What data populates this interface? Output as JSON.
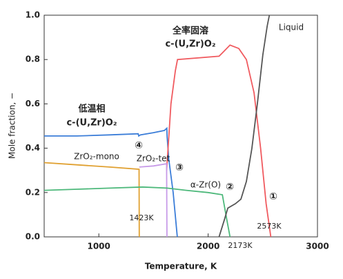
{
  "chart_data": {
    "type": "line",
    "xlabel": "Temperature, K",
    "ylabel": "Mole fraction, −",
    "xlim": [
      500,
      3000
    ],
    "xticks": [
      1000,
      2000,
      3000
    ],
    "ylim": [
      0,
      1
    ],
    "yticks": [
      {
        "value": 0,
        "label": "0.0"
      },
      0.2,
      0.4,
      0.6,
      0.8,
      {
        "value": 1,
        "label": "1.0"
      }
    ],
    "series": [
      {
        "color": "#3b7dd8",
        "x": [
          500,
          800,
          1100,
          1360,
          1365,
          1380,
          1500,
          1600,
          1622,
          1625,
          1640,
          1680,
          1718
        ],
        "values": [
          0.455,
          0.455,
          0.46,
          0.465,
          0.455,
          0.46,
          0.47,
          0.48,
          0.49,
          0.45,
          0.35,
          0.2,
          0
        ]
      },
      {
        "color": "#f05a5f",
        "x": [
          1620,
          1640,
          1660,
          1700,
          1720,
          2100,
          2130,
          2200,
          2280,
          2350,
          2420,
          2480,
          2530,
          2573
        ],
        "values": [
          0.3,
          0.45,
          0.6,
          0.75,
          0.8,
          0.815,
          0.83,
          0.865,
          0.85,
          0.8,
          0.65,
          0.4,
          0.15,
          0
        ]
      },
      {
        "color": "#e0a030",
        "x": [
          500,
          800,
          1100,
          1368,
          1370
        ],
        "values": [
          0.335,
          0.325,
          0.315,
          0.305,
          0
        ]
      },
      {
        "color": "#c79ae8",
        "x": [
          1370,
          1500,
          1620,
          1623
        ],
        "values": [
          0.315,
          0.32,
          0.33,
          0
        ]
      },
      {
        "color": "#4cb87a",
        "x": [
          500,
          800,
          1100,
          1400,
          1625,
          1800,
          2000,
          2130,
          2170,
          2200
        ],
        "values": [
          0.21,
          0.215,
          0.22,
          0.225,
          0.22,
          0.21,
          0.2,
          0.19,
          0.08,
          0
        ]
      },
      {
        "color": "#555555",
        "x": [
          2100,
          2150,
          2180,
          2250,
          2300,
          2350,
          2400,
          2450,
          2500,
          2540,
          2560
        ],
        "values": [
          0,
          0.08,
          0.13,
          0.15,
          0.17,
          0.25,
          0.4,
          0.6,
          0.82,
          0.95,
          1.0
        ]
      }
    ],
    "annotations": [
      "全率固溶",
      "c-(U,Zr)O₂",
      "低温相",
      "c-(U,Zr)O₂",
      "④",
      "ZrO₂-mono",
      "ZrO₂-tet",
      "③",
      "α-Zr(O)",
      "②",
      "①",
      "Liquid",
      "1423K",
      "2173K",
      "2573K"
    ]
  }
}
